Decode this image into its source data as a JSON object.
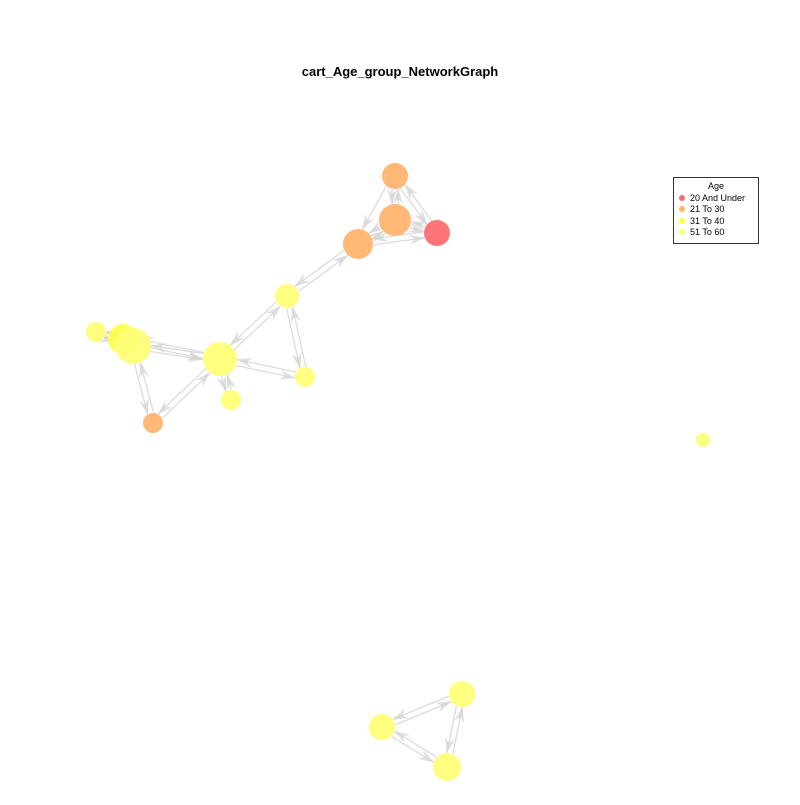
{
  "title": "cart_Age_group_NetworkGraph",
  "legend": {
    "title": "Age",
    "items": [
      {
        "label": "20 And Under",
        "color": "#ff6e6e"
      },
      {
        "label": "21 To 30",
        "color": "#ffb46e"
      },
      {
        "label": "31 To 40",
        "color": "#ffff3c"
      },
      {
        "label": "51 To 60",
        "color": "#ffff78"
      }
    ]
  },
  "colors": {
    "edge": "#d3d3d3",
    "age_20_and_under": "#ff6e6e",
    "age_21_to_30": "#ffb46e",
    "age_31_to_40": "#ffff3c",
    "age_51_to_60": "#ffff78"
  }
}
